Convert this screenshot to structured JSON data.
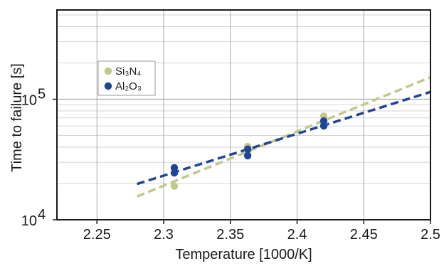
{
  "chart_data": {
    "type": "scatter",
    "xlabel": "Temperature [1000/K]",
    "ylabel": "Time to failure [s]",
    "xlim": [
      2.22,
      2.5
    ],
    "ylim": [
      10000,
      550000
    ],
    "y_scale": "log",
    "grid": true,
    "legend_position": "top-left",
    "x_ticks": [
      2.25,
      2.3,
      2.35,
      2.4,
      2.45,
      2.5
    ],
    "x_tick_labels": [
      "2.25",
      "2.3",
      "2.35",
      "2.4",
      "2.45",
      "2.5"
    ],
    "y_tick_labels": [
      {
        "value": 10000,
        "base": "10",
        "exp": "4"
      },
      {
        "value": 100000,
        "base": "10",
        "exp": "5"
      }
    ],
    "series": [
      {
        "name": "Si₃N₄",
        "color": "#c2c88a",
        "points": [
          {
            "x": 2.308,
            "y": 19000
          },
          {
            "x": 2.308,
            "y": 24500
          },
          {
            "x": 2.363,
            "y": 36500
          },
          {
            "x": 2.363,
            "y": 40500
          },
          {
            "x": 2.42,
            "y": 63000
          },
          {
            "x": 2.42,
            "y": 72500
          }
        ],
        "fit": {
          "x": [
            2.28,
            2.5
          ],
          "y": [
            15600,
            152000
          ]
        }
      },
      {
        "name": "Al₂O₃",
        "color": "#1f4596",
        "points": [
          {
            "x": 2.308,
            "y": 24500
          },
          {
            "x": 2.308,
            "y": 27000
          },
          {
            "x": 2.363,
            "y": 34000
          },
          {
            "x": 2.363,
            "y": 38500
          },
          {
            "x": 2.42,
            "y": 60000
          },
          {
            "x": 2.42,
            "y": 66000
          }
        ],
        "fit": {
          "x": [
            2.28,
            2.5
          ],
          "y": [
            19800,
            115000
          ]
        }
      }
    ]
  }
}
